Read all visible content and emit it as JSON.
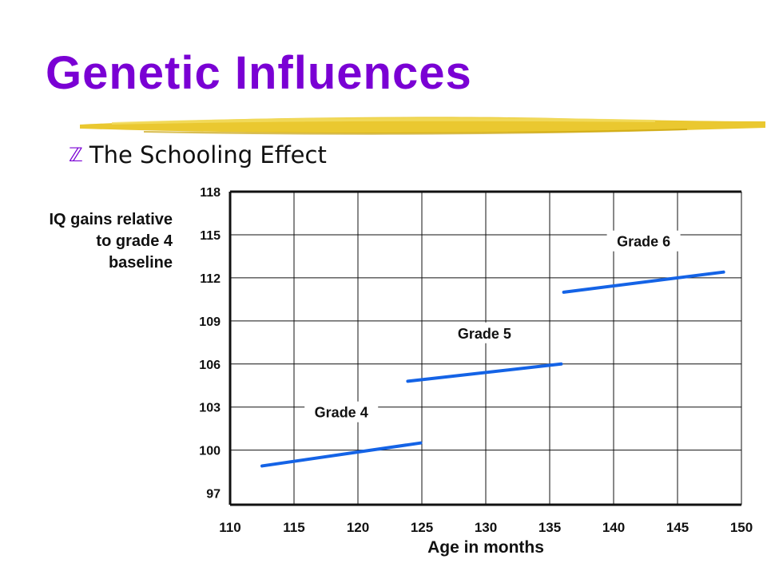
{
  "slide": {
    "title": "Genetic Influences",
    "bullet": "The Schooling Effect",
    "bullet_icon": "z-bullet-icon",
    "accent_color": "#7a00d4",
    "underline_color": "#e8c21a"
  },
  "chart_data": {
    "type": "line",
    "title": "",
    "xlabel": "Age in months",
    "ylabel": "IQ gains relative\nto grade 4\nbaseline",
    "xlim": [
      110,
      150
    ],
    "ylim": [
      96.2,
      118
    ],
    "x_ticks": [
      110,
      115,
      120,
      125,
      130,
      135,
      140,
      145,
      150
    ],
    "y_ticks": [
      97,
      100,
      103,
      106,
      109,
      112,
      115,
      118
    ],
    "grid": true,
    "line_color": "#1463e6",
    "series": [
      {
        "name": "Grade 4",
        "x": [
          112.5,
          124.9
        ],
        "y": [
          98.9,
          100.5
        ]
      },
      {
        "name": "Grade 5",
        "x": [
          123.9,
          135.9
        ],
        "y": [
          104.8,
          106.0
        ]
      },
      {
        "name": "Grade 6",
        "x": [
          136.1,
          148.6
        ],
        "y": [
          111.0,
          112.4
        ]
      }
    ]
  }
}
